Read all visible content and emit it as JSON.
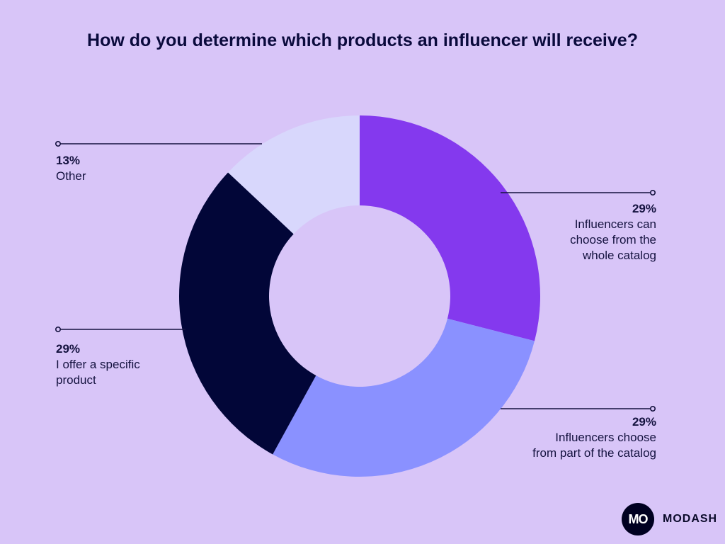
{
  "chart_data": {
    "type": "pie",
    "title": "How do you determine which products an influencer will receive?",
    "slices": [
      {
        "label": "Influencers can\nchoose from the\nwhole catalog",
        "value": 29,
        "display": "29%",
        "color": "#8439EE"
      },
      {
        "label": "Influencers choose\nfrom part of the catalog",
        "value": 29,
        "display": "29%",
        "color": "#8A91FF"
      },
      {
        "label": "I offer a specific\nproduct",
        "value": 29,
        "display": "29%",
        "color": "#020638"
      },
      {
        "label": "Other",
        "value": 13,
        "display": "13%",
        "color": "#D8D7FC"
      }
    ],
    "legend": "none",
    "grid": false
  },
  "brand": {
    "logo_mark": "MO",
    "logo_text": "MODASH"
  }
}
